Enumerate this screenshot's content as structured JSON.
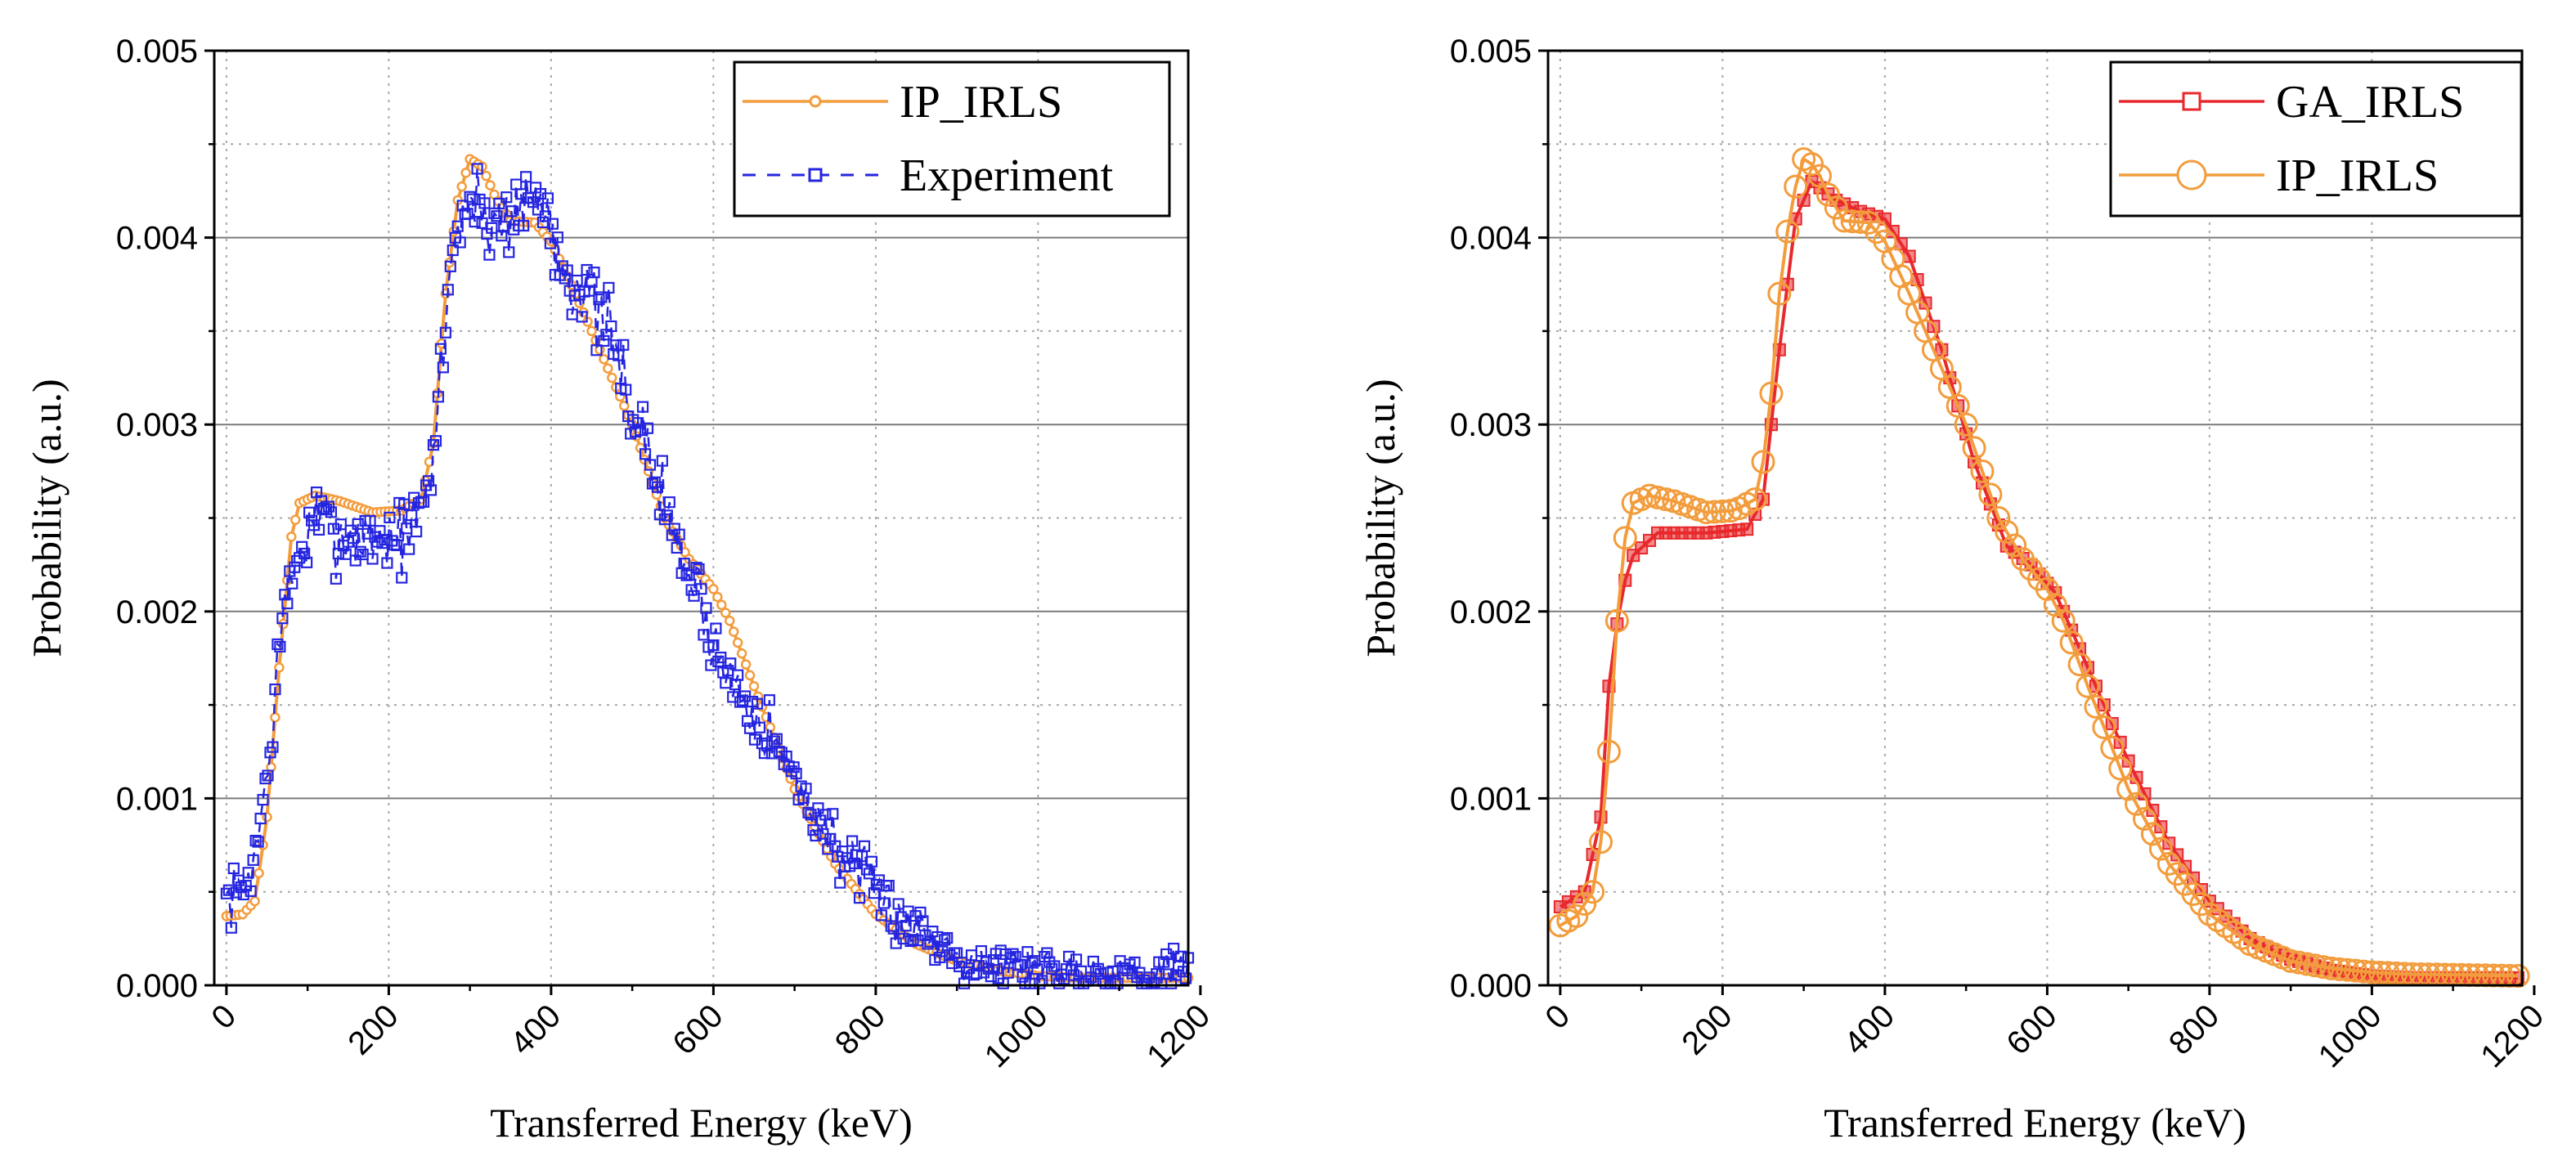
{
  "chart_data": [
    {
      "type": "line",
      "title": "",
      "xlabel": "Transferred Energy (keV)",
      "ylabel": "Probability (a.u.)",
      "xlim": [
        -15,
        1185
      ],
      "ylim": [
        0,
        0.005
      ],
      "xticks": [
        0,
        200,
        400,
        600,
        800,
        1000,
        1200
      ],
      "xtick_labels": [
        "0",
        "200",
        "400",
        "600",
        "800",
        "1000",
        "1200"
      ],
      "yticks": [
        0,
        0.001,
        0.002,
        0.003,
        0.004,
        0.005
      ],
      "ytick_labels": [
        "0.000",
        "0.001",
        "0.002",
        "0.003",
        "0.004",
        "0.005"
      ],
      "grid": true,
      "legend": "top-right",
      "series": [
        {
          "name": "IP_IRLS",
          "color": "#f39c3c",
          "marker": "circle",
          "line": "solid",
          "x_range": [
            0,
            1185
          ],
          "step": 5,
          "profile": [
            [
              0,
              0.00037
            ],
            [
              20,
              0.00038
            ],
            [
              35,
              0.00045
            ],
            [
              50,
              0.0009
            ],
            [
              65,
              0.0017
            ],
            [
              80,
              0.0024
            ],
            [
              90,
              0.00258
            ],
            [
              110,
              0.00262
            ],
            [
              140,
              0.00259
            ],
            [
              180,
              0.00253
            ],
            [
              215,
              0.00254
            ],
            [
              240,
              0.0026
            ],
            [
              255,
              0.0029
            ],
            [
              270,
              0.0037
            ],
            [
              285,
              0.0042
            ],
            [
              300,
              0.00442
            ],
            [
              315,
              0.00438
            ],
            [
              330,
              0.00423
            ],
            [
              350,
              0.00409
            ],
            [
              380,
              0.00408
            ],
            [
              400,
              0.00398
            ],
            [
              430,
              0.0037
            ],
            [
              460,
              0.0034
            ],
            [
              500,
              0.003
            ],
            [
              540,
              0.0025
            ],
            [
              570,
              0.00228
            ],
            [
              600,
              0.00212
            ],
            [
              620,
              0.00195
            ],
            [
              650,
              0.0016
            ],
            [
              700,
              0.00105
            ],
            [
              750,
              0.00065
            ],
            [
              800,
              0.00038
            ],
            [
              850,
              0.00022
            ],
            [
              900,
              0.00013
            ],
            [
              950,
              8e-05
            ],
            [
              1000,
              5e-05
            ],
            [
              1050,
              4e-05
            ],
            [
              1185,
              4e-05
            ]
          ]
        },
        {
          "name": "Experiment",
          "color": "#2525e0",
          "marker": "square",
          "line": "dashed",
          "x_range": [
            0,
            1185
          ],
          "step": 3,
          "noise": 0.00022,
          "noise_growth": 0.22,
          "seed": 7,
          "profile": [
            [
              0,
              0.00045
            ],
            [
              20,
              0.0005
            ],
            [
              35,
              0.0007
            ],
            [
              50,
              0.0011
            ],
            [
              65,
              0.0018
            ],
            [
              80,
              0.0022
            ],
            [
              95,
              0.00235
            ],
            [
              110,
              0.0025
            ],
            [
              140,
              0.0024
            ],
            [
              180,
              0.0024
            ],
            [
              215,
              0.0024
            ],
            [
              240,
              0.0025
            ],
            [
              255,
              0.0028
            ],
            [
              270,
              0.0036
            ],
            [
              285,
              0.0041
            ],
            [
              300,
              0.0042
            ],
            [
              320,
              0.0041
            ],
            [
              340,
              0.0041
            ],
            [
              370,
              0.0042
            ],
            [
              390,
              0.0042
            ],
            [
              410,
              0.0039
            ],
            [
              440,
              0.0037
            ],
            [
              470,
              0.0035
            ],
            [
              500,
              0.0031
            ],
            [
              530,
              0.0027
            ],
            [
              560,
              0.0023
            ],
            [
              590,
              0.002
            ],
            [
              610,
              0.0017
            ],
            [
              650,
              0.0015
            ],
            [
              700,
              0.0011
            ],
            [
              750,
              0.00075
            ],
            [
              800,
              0.00048
            ],
            [
              850,
              0.0003
            ],
            [
              900,
              0.00017
            ],
            [
              950,
              0.0001
            ],
            [
              1000,
              8e-05
            ],
            [
              1100,
              7e-05
            ],
            [
              1185,
              6e-05
            ]
          ]
        }
      ]
    },
    {
      "type": "line",
      "title": "",
      "xlabel": "Transferred Energy (keV)",
      "ylabel": "Probability (a.u.)",
      "xlim": [
        -15,
        1185
      ],
      "ylim": [
        0,
        0.005
      ],
      "xticks": [
        0,
        200,
        400,
        600,
        800,
        1000,
        1200
      ],
      "xtick_labels": [
        "0",
        "200",
        "400",
        "600",
        "800",
        "1000",
        "1200"
      ],
      "yticks": [
        0,
        0.001,
        0.002,
        0.003,
        0.004,
        0.005
      ],
      "ytick_labels": [
        "0.000",
        "0.001",
        "0.002",
        "0.003",
        "0.004",
        "0.005"
      ],
      "grid": true,
      "legend": "top-right",
      "series": [
        {
          "name": "GA_IRLS",
          "color": "#e8282c",
          "marker": "square",
          "line": "solid",
          "x_range": [
            0,
            1185
          ],
          "step": 10,
          "profile": [
            [
              0,
              0.00042
            ],
            [
              30,
              0.0005
            ],
            [
              50,
              0.0009
            ],
            [
              60,
              0.0016
            ],
            [
              75,
              0.0021
            ],
            [
              90,
              0.0023
            ],
            [
              120,
              0.00242
            ],
            [
              180,
              0.00242
            ],
            [
              230,
              0.00244
            ],
            [
              250,
              0.0026
            ],
            [
              270,
              0.0034
            ],
            [
              290,
              0.0041
            ],
            [
              310,
              0.0043
            ],
            [
              340,
              0.0042
            ],
            [
              370,
              0.00414
            ],
            [
              400,
              0.0041
            ],
            [
              430,
              0.0039
            ],
            [
              470,
              0.0034
            ],
            [
              510,
              0.0028
            ],
            [
              550,
              0.00235
            ],
            [
              580,
              0.00225
            ],
            [
              610,
              0.0021
            ],
            [
              650,
              0.0017
            ],
            [
              700,
              0.0012
            ],
            [
              750,
              0.00076
            ],
            [
              800,
              0.00045
            ],
            [
              850,
              0.00025
            ],
            [
              900,
              0.00014
            ],
            [
              950,
              8e-05
            ],
            [
              1000,
              5e-05
            ],
            [
              1050,
              4e-05
            ],
            [
              1185,
              4e-05
            ]
          ]
        },
        {
          "name": "IP_IRLS",
          "color": "#f39c3c",
          "marker": "circle",
          "line": "solid",
          "x_range": [
            0,
            1185
          ],
          "step": 10,
          "profile": [
            [
              0,
              0.00032
            ],
            [
              20,
              0.00037
            ],
            [
              40,
              0.0005
            ],
            [
              55,
              0.0009
            ],
            [
              65,
              0.0016
            ],
            [
              75,
              0.0023
            ],
            [
              90,
              0.00258
            ],
            [
              110,
              0.00262
            ],
            [
              140,
              0.00259
            ],
            [
              180,
              0.00253
            ],
            [
              215,
              0.00254
            ],
            [
              240,
              0.0026
            ],
            [
              255,
              0.0029
            ],
            [
              270,
              0.0037
            ],
            [
              285,
              0.0042
            ],
            [
              300,
              0.00442
            ],
            [
              315,
              0.00438
            ],
            [
              330,
              0.00423
            ],
            [
              350,
              0.00409
            ],
            [
              380,
              0.00408
            ],
            [
              400,
              0.00398
            ],
            [
              430,
              0.0037
            ],
            [
              460,
              0.0034
            ],
            [
              500,
              0.003
            ],
            [
              540,
              0.0025
            ],
            [
              570,
              0.00228
            ],
            [
              600,
              0.00212
            ],
            [
              620,
              0.00195
            ],
            [
              650,
              0.0016
            ],
            [
              700,
              0.00105
            ],
            [
              750,
              0.00065
            ],
            [
              800,
              0.00038
            ],
            [
              850,
              0.00022
            ],
            [
              900,
              0.00013
            ],
            [
              950,
              9e-05
            ],
            [
              1000,
              7e-05
            ],
            [
              1050,
              6e-05
            ],
            [
              1185,
              5e-05
            ]
          ]
        }
      ]
    }
  ]
}
